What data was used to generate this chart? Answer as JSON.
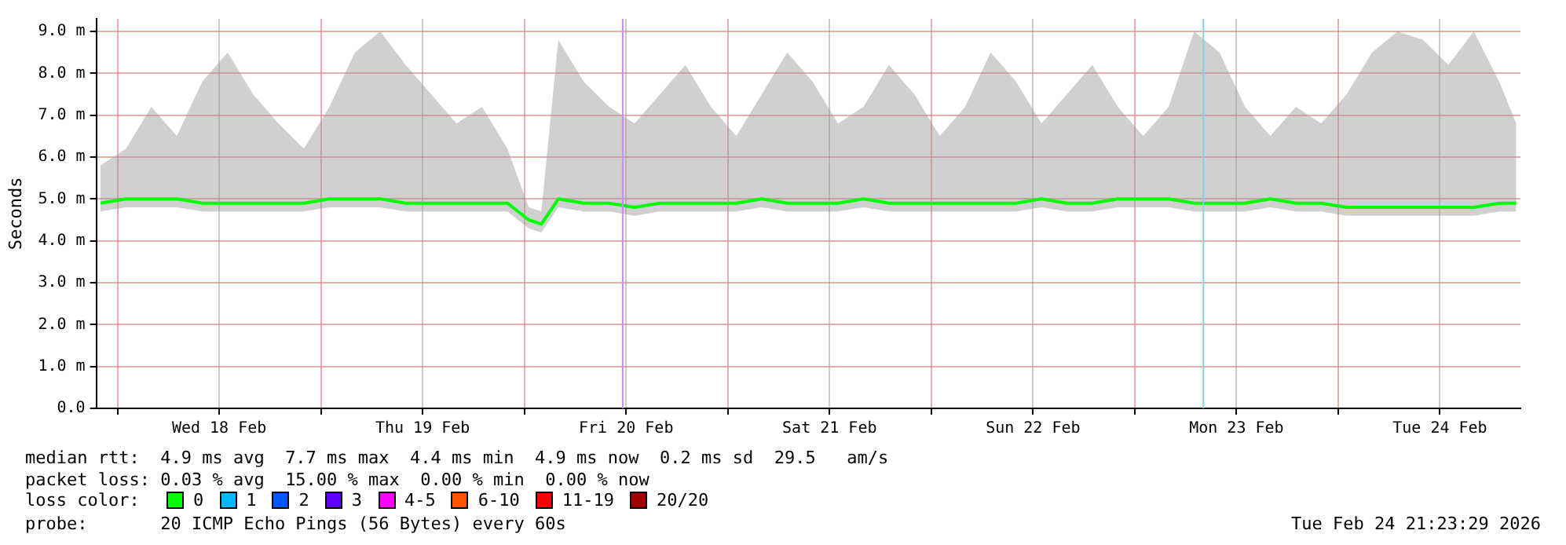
{
  "chart_data": {
    "type": "line",
    "ylabel": "Seconds",
    "legend_title": "loss color:",
    "legend": "bottom",
    "grid": true,
    "marker": "none",
    "line_style": "solid",
    "x": [
      "2026-02-17T22:00",
      "2026-02-18T01:00",
      "2026-02-18T04:00",
      "2026-02-18T07:00",
      "2026-02-18T10:00",
      "2026-02-18T13:00",
      "2026-02-18T16:00",
      "2026-02-18T19:00",
      "2026-02-18T22:00",
      "2026-02-19T01:00",
      "2026-02-19T04:00",
      "2026-02-19T07:00",
      "2026-02-19T10:00",
      "2026-02-19T13:00",
      "2026-02-19T16:00",
      "2026-02-19T19:00",
      "2026-02-19T22:00",
      "2026-02-20T00:30",
      "2026-02-20T02:00",
      "2026-02-20T04:00",
      "2026-02-20T07:00",
      "2026-02-20T10:00",
      "2026-02-20T13:00",
      "2026-02-20T16:00",
      "2026-02-20T19:00",
      "2026-02-20T22:00",
      "2026-02-21T01:00",
      "2026-02-21T04:00",
      "2026-02-21T07:00",
      "2026-02-21T10:00",
      "2026-02-21T13:00",
      "2026-02-21T16:00",
      "2026-02-21T19:00",
      "2026-02-21T22:00",
      "2026-02-22T01:00",
      "2026-02-22T04:00",
      "2026-02-22T07:00",
      "2026-02-22T10:00",
      "2026-02-22T13:00",
      "2026-02-22T16:00",
      "2026-02-22T19:00",
      "2026-02-22T22:00",
      "2026-02-23T01:00",
      "2026-02-23T04:00",
      "2026-02-23T07:00",
      "2026-02-23T10:00",
      "2026-02-23T13:00",
      "2026-02-23T16:00",
      "2026-02-23T19:00",
      "2026-02-23T22:00",
      "2026-02-24T01:00",
      "2026-02-24T04:00",
      "2026-02-24T07:00",
      "2026-02-24T10:00",
      "2026-02-24T13:00",
      "2026-02-24T16:00",
      "2026-02-24T19:00",
      "2026-02-24T21:00"
    ],
    "xlim": [
      "2026-02-17T21:30",
      "2026-02-24T21:30"
    ],
    "xticks": [
      {
        "value": "2026-02-18T00:00",
        "label": null
      },
      {
        "value": "2026-02-18T12:00",
        "label": "Wed 18 Feb"
      },
      {
        "value": "2026-02-19T00:00",
        "label": null
      },
      {
        "value": "2026-02-19T12:00",
        "label": "Thu 19 Feb"
      },
      {
        "value": "2026-02-20T00:00",
        "label": null
      },
      {
        "value": "2026-02-20T12:00",
        "label": "Fri 20 Feb"
      },
      {
        "value": "2026-02-21T00:00",
        "label": null
      },
      {
        "value": "2026-02-21T12:00",
        "label": "Sat 21 Feb"
      },
      {
        "value": "2026-02-22T00:00",
        "label": null
      },
      {
        "value": "2026-02-22T12:00",
        "label": "Sun 22 Feb"
      },
      {
        "value": "2026-02-23T00:00",
        "label": null
      },
      {
        "value": "2026-02-23T12:00",
        "label": "Mon 23 Feb"
      },
      {
        "value": "2026-02-24T00:00",
        "label": null
      },
      {
        "value": "2026-02-24T12:00",
        "label": "Tue 24 Feb"
      }
    ],
    "ylim": [
      0,
      9.3
    ],
    "yticks": [
      {
        "value": 0,
        "label": "0.0"
      },
      {
        "value": 1,
        "label": "1.0 m"
      },
      {
        "value": 2,
        "label": "2.0 m"
      },
      {
        "value": 3,
        "label": "3.0 m"
      },
      {
        "value": 4,
        "label": "4.0 m"
      },
      {
        "value": 5,
        "label": "5.0 m"
      },
      {
        "value": 6,
        "label": "6.0 m"
      },
      {
        "value": 7,
        "label": "7.0 m"
      },
      {
        "value": 8,
        "label": "8.0 m"
      },
      {
        "value": 9,
        "label": "9.0 m"
      }
    ],
    "series": [
      {
        "name": "0",
        "color": "#00ff00",
        "values": [
          4.9,
          5.0,
          5.0,
          5.0,
          4.9,
          4.9,
          4.9,
          4.9,
          4.9,
          5.0,
          5.0,
          5.0,
          4.9,
          4.9,
          4.9,
          4.9,
          4.9,
          4.5,
          4.4,
          5.0,
          4.9,
          4.9,
          4.8,
          4.9,
          4.9,
          4.9,
          4.9,
          5.0,
          4.9,
          4.9,
          4.9,
          5.0,
          4.9,
          4.9,
          4.9,
          4.9,
          4.9,
          4.9,
          5.0,
          4.9,
          4.9,
          5.0,
          5.0,
          5.0,
          4.9,
          4.9,
          4.9,
          5.0,
          4.9,
          4.9,
          4.8,
          4.8,
          4.8,
          4.8,
          4.8,
          4.8,
          4.9,
          4.9
        ],
        "lower": [
          4.7,
          4.8,
          4.8,
          4.8,
          4.7,
          4.7,
          4.7,
          4.7,
          4.7,
          4.8,
          4.8,
          4.8,
          4.7,
          4.7,
          4.7,
          4.7,
          4.7,
          4.3,
          4.2,
          4.8,
          4.7,
          4.7,
          4.6,
          4.7,
          4.7,
          4.7,
          4.7,
          4.8,
          4.7,
          4.7,
          4.7,
          4.8,
          4.7,
          4.7,
          4.7,
          4.7,
          4.7,
          4.7,
          4.8,
          4.7,
          4.7,
          4.8,
          4.8,
          4.8,
          4.7,
          4.7,
          4.7,
          4.8,
          4.7,
          4.7,
          4.6,
          4.6,
          4.6,
          4.6,
          4.6,
          4.6,
          4.7,
          4.7
        ],
        "upper": [
          5.8,
          6.2,
          7.2,
          6.5,
          7.8,
          8.5,
          7.5,
          6.8,
          6.2,
          7.2,
          8.5,
          9.0,
          8.2,
          7.5,
          6.8,
          7.2,
          6.2,
          4.8,
          4.7,
          8.8,
          7.8,
          7.2,
          6.8,
          7.5,
          8.2,
          7.2,
          6.5,
          7.5,
          8.5,
          7.8,
          6.8,
          7.2,
          8.2,
          7.5,
          6.5,
          7.2,
          8.5,
          7.8,
          6.8,
          7.5,
          8.2,
          7.2,
          6.5,
          7.2,
          9.0,
          8.5,
          7.2,
          6.5,
          7.2,
          6.8,
          7.5,
          8.5,
          9.0,
          8.8,
          8.2,
          9.0,
          7.8,
          6.8
        ]
      },
      {
        "name": "1",
        "color": "#00b8ff",
        "values": [
          null,
          null,
          null,
          null,
          null,
          null,
          null,
          null,
          null,
          null,
          null,
          null,
          null,
          null,
          null,
          null,
          null,
          null,
          null,
          null,
          null,
          null,
          null,
          null,
          null,
          null,
          null,
          null,
          null,
          null,
          null,
          null,
          null,
          null,
          null,
          null,
          null,
          null,
          null,
          null,
          null,
          null,
          null,
          null,
          null,
          null,
          null,
          null,
          null,
          null,
          null,
          null,
          null,
          null,
          null,
          null,
          null,
          null
        ]
      },
      {
        "name": "2",
        "color": "#0059ff",
        "values": [
          null,
          null,
          null,
          null,
          null,
          null,
          null,
          null,
          null,
          null,
          null,
          null,
          null,
          null,
          null,
          null,
          null,
          null,
          null,
          null,
          null,
          null,
          null,
          null,
          null,
          null,
          null,
          null,
          null,
          null,
          null,
          null,
          null,
          null,
          null,
          null,
          null,
          null,
          null,
          null,
          null,
          null,
          null,
          null,
          null,
          null,
          null,
          null,
          null,
          null,
          null,
          null,
          null,
          null,
          null,
          null,
          null,
          null
        ]
      },
      {
        "name": "3",
        "color": "#5e00ff",
        "values": [
          null,
          null,
          null,
          null,
          null,
          null,
          null,
          null,
          null,
          null,
          null,
          null,
          null,
          null,
          null,
          null,
          null,
          null,
          null,
          null,
          null,
          null,
          null,
          null,
          null,
          null,
          null,
          null,
          null,
          null,
          null,
          null,
          null,
          null,
          null,
          null,
          null,
          null,
          null,
          null,
          null,
          null,
          null,
          null,
          null,
          null,
          null,
          null,
          null,
          null,
          null,
          null,
          null,
          null,
          null,
          null,
          null,
          null
        ]
      },
      {
        "name": "4-5",
        "color": "#ff00ff",
        "values": [
          null,
          null,
          null,
          null,
          null,
          null,
          null,
          null,
          null,
          null,
          null,
          null,
          null,
          null,
          null,
          null,
          null,
          null,
          null,
          null,
          null,
          null,
          null,
          null,
          null,
          null,
          null,
          null,
          null,
          null,
          null,
          null,
          null,
          null,
          null,
          null,
          null,
          null,
          null,
          null,
          null,
          null,
          null,
          null,
          null,
          null,
          null,
          null,
          null,
          null,
          null,
          null,
          null,
          null,
          null,
          null,
          null,
          null
        ]
      },
      {
        "name": "6-10",
        "color": "#ff5500",
        "values": [
          null,
          null,
          null,
          null,
          null,
          null,
          null,
          null,
          null,
          null,
          null,
          null,
          null,
          null,
          null,
          null,
          null,
          null,
          null,
          null,
          null,
          null,
          null,
          null,
          null,
          null,
          null,
          null,
          null,
          null,
          null,
          null,
          null,
          null,
          null,
          null,
          null,
          null,
          null,
          null,
          null,
          null,
          null,
          null,
          null,
          null,
          null,
          null,
          null,
          null,
          null,
          null,
          null,
          null,
          null,
          null,
          null,
          null
        ]
      },
      {
        "name": "11-19",
        "color": "#ff0000",
        "values": [
          null,
          null,
          null,
          null,
          null,
          null,
          null,
          null,
          null,
          null,
          null,
          null,
          null,
          null,
          null,
          null,
          null,
          null,
          null,
          null,
          null,
          null,
          null,
          null,
          null,
          null,
          null,
          null,
          null,
          null,
          null,
          null,
          null,
          null,
          null,
          null,
          null,
          null,
          null,
          null,
          null,
          null,
          null,
          null,
          null,
          null,
          null,
          null,
          null,
          null,
          null,
          null,
          null,
          null,
          null,
          null,
          null,
          null
        ]
      },
      {
        "name": "20/20",
        "color": "#a10000",
        "values": [
          null,
          null,
          null,
          null,
          null,
          null,
          null,
          null,
          null,
          null,
          null,
          null,
          null,
          null,
          null,
          null,
          null,
          null,
          null,
          null,
          null,
          null,
          null,
          null,
          null,
          null,
          null,
          null,
          null,
          null,
          null,
          null,
          null,
          null,
          null,
          null,
          null,
          null,
          null,
          null,
          null,
          null,
          null,
          null,
          null,
          null,
          null,
          null,
          null,
          null,
          null,
          null,
          null,
          null,
          null,
          null,
          null,
          null
        ]
      }
    ],
    "ref_lines": [
      {
        "axis": "x",
        "value": "2026-02-20T11:36",
        "color": "#cc88ff"
      },
      {
        "axis": "x",
        "value": "2026-02-23T08:06",
        "color": "#88ccee"
      }
    ],
    "annotations": [
      "median rtt:  4.9 ms avg  7.7 ms max  4.4 ms min  4.9 ms now  0.2 ms sd  29.5   am/s",
      "packet loss: 0.03 % avg  15.00 % max  0.00 % min  0.00 % now",
      "probe:       20 ICMP Echo Pings (56 Bytes) every 60s",
      "Tue Feb 24 21:23:29 2026"
    ]
  }
}
